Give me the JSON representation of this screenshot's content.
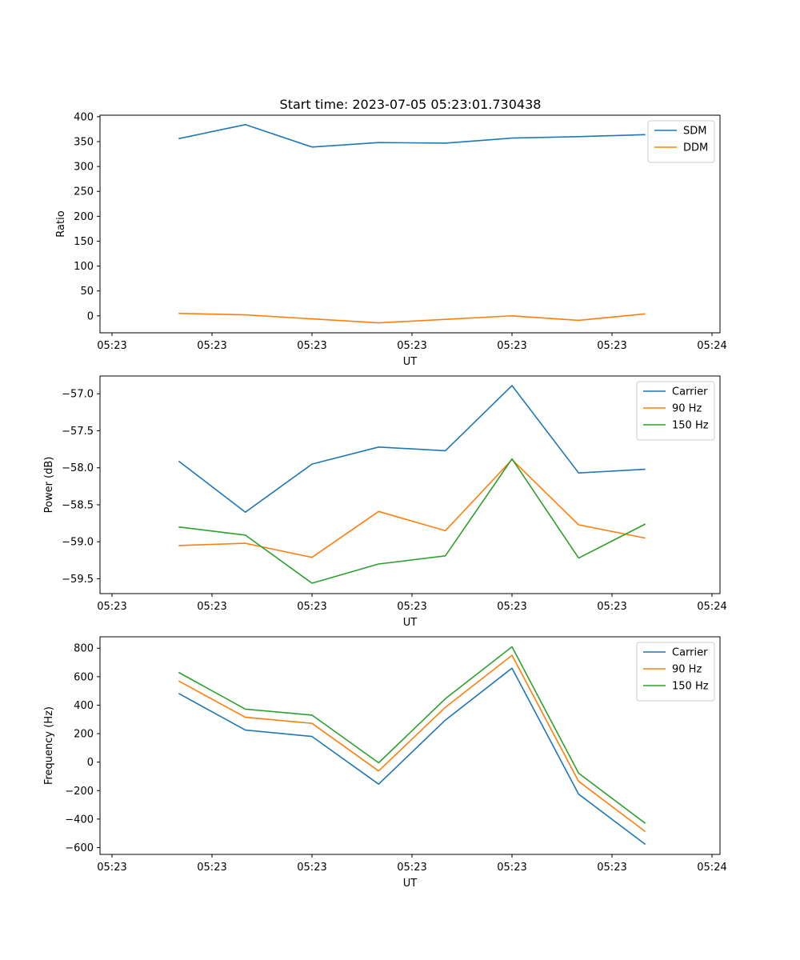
{
  "title": "Start time: 2023-07-05 05:23:01.730438",
  "chart_data": [
    {
      "type": "line",
      "title": "Start time: 2023-07-05 05:23:01.730438",
      "xlabel": "UT",
      "ylabel": "Ratio",
      "x_tick_labels": [
        "05:23",
        "05:23",
        "05:23",
        "05:23",
        "05:23",
        "05:23",
        "05:24"
      ],
      "x": [
        1,
        2,
        3,
        4,
        5,
        6,
        7,
        8
      ],
      "xlim": [
        -0.18,
        9.12
      ],
      "ylim": [
        -34,
        403
      ],
      "y_ticks": [
        0,
        50,
        100,
        150,
        200,
        250,
        300,
        350,
        400
      ],
      "legend_position": "top-right",
      "series": [
        {
          "name": "SDM",
          "color": "#1f77b4",
          "values": [
            356,
            384,
            339,
            348,
            347,
            357,
            360,
            364
          ]
        },
        {
          "name": "DDM",
          "color": "#ff7f0e",
          "values": [
            5,
            2,
            -6,
            -14,
            -7,
            0,
            -9,
            4
          ]
        }
      ]
    },
    {
      "type": "line",
      "title": "",
      "xlabel": "UT",
      "ylabel": "Power (dB)",
      "x_tick_labels": [
        "05:23",
        "05:23",
        "05:23",
        "05:23",
        "05:23",
        "05:23",
        "05:24"
      ],
      "x": [
        1,
        2,
        3,
        4,
        5,
        6,
        7,
        8
      ],
      "xlim": [
        -0.18,
        9.12
      ],
      "ylim": [
        -59.7,
        -56.76
      ],
      "y_ticks": [
        -57.0,
        -57.5,
        -58.0,
        -58.5,
        -59.0,
        -59.5
      ],
      "y_tick_labels": [
        "−57.0",
        "−57.5",
        "−58.0",
        "−58.5",
        "−59.0",
        "−59.5"
      ],
      "legend_position": "top-right",
      "series": [
        {
          "name": "Carrier",
          "color": "#1f77b4",
          "values": [
            -57.91,
            -58.6,
            -57.95,
            -57.72,
            -57.77,
            -56.89,
            -58.07,
            -58.02
          ]
        },
        {
          "name": "90 Hz",
          "color": "#ff7f0e",
          "values": [
            -59.05,
            -59.02,
            -59.21,
            -58.59,
            -58.85,
            -57.89,
            -58.77,
            -58.95
          ]
        },
        {
          "name": "150 Hz",
          "color": "#2ca02c",
          "values": [
            -58.8,
            -58.91,
            -59.56,
            -59.3,
            -59.19,
            -57.88,
            -59.22,
            -58.76
          ]
        }
      ]
    },
    {
      "type": "line",
      "title": "",
      "xlabel": "UT",
      "ylabel": "Frequency (Hz)",
      "x_tick_labels": [
        "05:23",
        "05:23",
        "05:23",
        "05:23",
        "05:23",
        "05:23",
        "05:24"
      ],
      "x": [
        1,
        2,
        3,
        4,
        5,
        6,
        7,
        8
      ],
      "xlim": [
        -0.18,
        9.12
      ],
      "ylim": [
        -648,
        880
      ],
      "y_ticks": [
        800,
        600,
        400,
        200,
        0,
        -200,
        -400,
        -600
      ],
      "y_tick_labels": [
        "800",
        "600",
        "400",
        "200",
        "0",
        "−200",
        "−400",
        "−600"
      ],
      "legend_position": "top-right",
      "series": [
        {
          "name": "Carrier",
          "color": "#1f77b4",
          "values": [
            482,
            225,
            180,
            -155,
            295,
            660,
            -225,
            -578
          ]
        },
        {
          "name": "90 Hz",
          "color": "#ff7f0e",
          "values": [
            570,
            315,
            272,
            -62,
            385,
            750,
            -135,
            -488
          ]
        },
        {
          "name": "150 Hz",
          "color": "#2ca02c",
          "values": [
            630,
            372,
            330,
            -5,
            445,
            810,
            -78,
            -430
          ]
        }
      ]
    }
  ]
}
